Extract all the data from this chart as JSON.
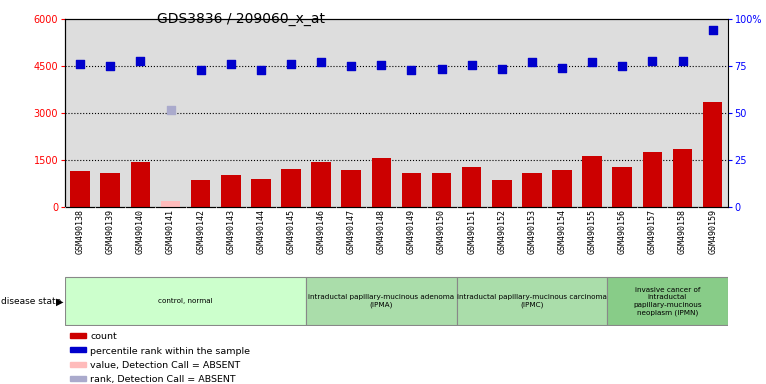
{
  "title": "GDS3836 / 209060_x_at",
  "samples": [
    "GSM490138",
    "GSM490139",
    "GSM490140",
    "GSM490141",
    "GSM490142",
    "GSM490143",
    "GSM490144",
    "GSM490145",
    "GSM490146",
    "GSM490147",
    "GSM490148",
    "GSM490149",
    "GSM490150",
    "GSM490151",
    "GSM490152",
    "GSM490153",
    "GSM490154",
    "GSM490155",
    "GSM490156",
    "GSM490157",
    "GSM490158",
    "GSM490159"
  ],
  "counts": [
    1150,
    1080,
    1450,
    200,
    860,
    1020,
    920,
    1230,
    1450,
    1180,
    1580,
    1100,
    1100,
    1300,
    870,
    1100,
    1200,
    1650,
    1280,
    1750,
    1850,
    3350
  ],
  "percentile_ranks_pct": [
    76,
    75,
    78,
    52,
    73,
    76,
    73,
    76,
    77,
    75,
    75.5,
    73,
    73.3,
    75.8,
    73.3,
    77,
    73.8,
    77.5,
    75.3,
    78,
    78,
    94
  ],
  "absent_mask": [
    false,
    false,
    false,
    true,
    false,
    false,
    false,
    false,
    false,
    false,
    false,
    false,
    false,
    false,
    false,
    false,
    false,
    false,
    false,
    false,
    false,
    false
  ],
  "bar_color_normal": "#cc0000",
  "bar_color_absent": "#ffbbbb",
  "dot_color_normal": "#0000cc",
  "dot_color_absent": "#aaaacc",
  "ylim_left": [
    0,
    6000
  ],
  "ylim_right": [
    0,
    100
  ],
  "left_ticks": [
    0,
    1500,
    3000,
    4500,
    6000
  ],
  "right_ticks": [
    0,
    25,
    50,
    75,
    100
  ],
  "right_tick_labels": [
    "0",
    "25",
    "50",
    "75",
    "100%"
  ],
  "grid_values_pct": [
    25,
    50,
    75
  ],
  "disease_groups": [
    {
      "label": "control, normal",
      "start": 0,
      "end": 8,
      "color": "#ccffcc"
    },
    {
      "label": "intraductal papillary-mucinous adenoma\n(IPMA)",
      "start": 8,
      "end": 13,
      "color": "#aaddaa"
    },
    {
      "label": "intraductal papillary-mucinous carcinoma\n(IPMC)",
      "start": 13,
      "end": 18,
      "color": "#aaddaa"
    },
    {
      "label": "invasive cancer of\nintraductal\npapillary-mucinous\nneoplasm (IPMN)",
      "start": 18,
      "end": 22,
      "color": "#88cc88"
    }
  ],
  "legend_items": [
    {
      "label": "count",
      "color": "#cc0000"
    },
    {
      "label": "percentile rank within the sample",
      "color": "#0000cc"
    },
    {
      "label": "value, Detection Call = ABSENT",
      "color": "#ffbbbb"
    },
    {
      "label": "rank, Detection Call = ABSENT",
      "color": "#aaaacc"
    }
  ]
}
